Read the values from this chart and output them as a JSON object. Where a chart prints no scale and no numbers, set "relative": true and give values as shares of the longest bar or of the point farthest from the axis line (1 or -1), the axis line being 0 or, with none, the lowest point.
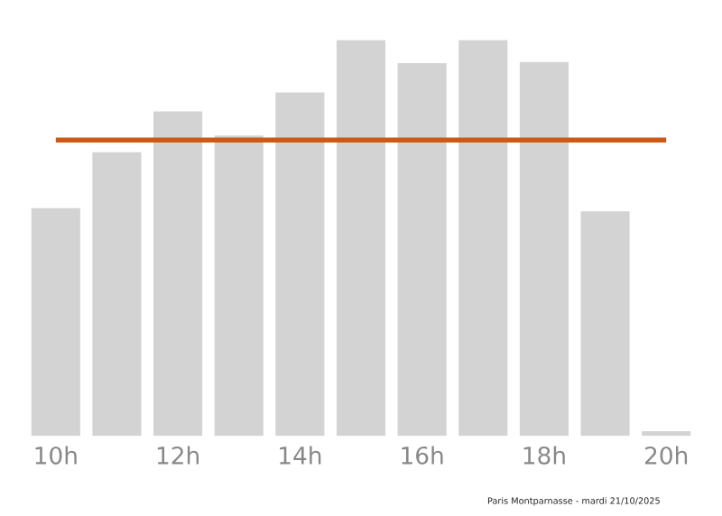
{
  "chart_data": {
    "type": "bar",
    "relative": true,
    "categories": [
      "10h",
      null,
      "12h",
      null,
      "14h",
      null,
      "16h",
      null,
      "18h",
      null,
      "20h"
    ],
    "values": [
      0.576,
      0.717,
      0.82,
      0.759,
      0.868,
      1,
      0.942,
      1,
      0.945,
      0.568,
      0.012
    ],
    "color": "#d3d3d3",
    "ref_lines": [
      {
        "axis": "y",
        "value": 0.748,
        "color": "#cc5a14"
      }
    ],
    "annotations": [
      "Paris Montparnasse - mardi 21/10/2025"
    ],
    "grid": false,
    "legend": false
  }
}
